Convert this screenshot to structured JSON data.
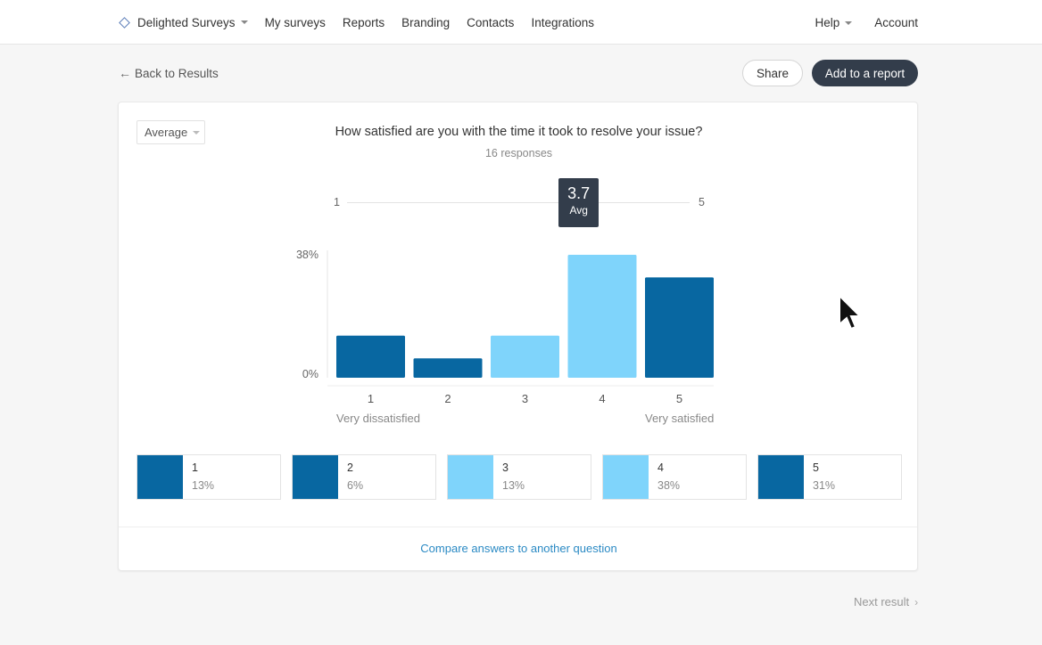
{
  "nav": {
    "brand": "Delighted Surveys",
    "links": [
      "My surveys",
      "Reports",
      "Branding",
      "Contacts",
      "Integrations"
    ],
    "help": "Help",
    "account": "Account"
  },
  "actions": {
    "back": "Back to Results",
    "share": "Share",
    "add_report": "Add to a report"
  },
  "card": {
    "view_select": "Average",
    "question": "How satisfied are you with the time it took to resolve your issue?",
    "responses": "16 responses",
    "scale_min": "1",
    "scale_max": "5",
    "average": {
      "value": "3.7",
      "label": "Avg"
    },
    "end_label_low": "Very dissatisfied",
    "end_label_high": "Very satisfied",
    "compare_link": "Compare answers to another question"
  },
  "chart_data": {
    "type": "bar",
    "categories": [
      "1",
      "2",
      "3",
      "4",
      "5"
    ],
    "values": [
      13,
      6,
      13,
      38,
      31
    ],
    "ylabel": "",
    "yticks": [
      "38%",
      "0%"
    ],
    "ylim": [
      0,
      38
    ],
    "colors": [
      "#0867a1",
      "#0867a1",
      "#7fd4fb",
      "#7fd4fb",
      "#0867a1"
    ],
    "percent_labels": [
      "13%",
      "6%",
      "13%",
      "38%",
      "31%"
    ]
  },
  "next_result": "Next result",
  "colors": {
    "dark_blue": "#0867a1",
    "light_blue": "#7fd4fb",
    "accent": "#333d4b",
    "link": "#2b8ac4"
  }
}
